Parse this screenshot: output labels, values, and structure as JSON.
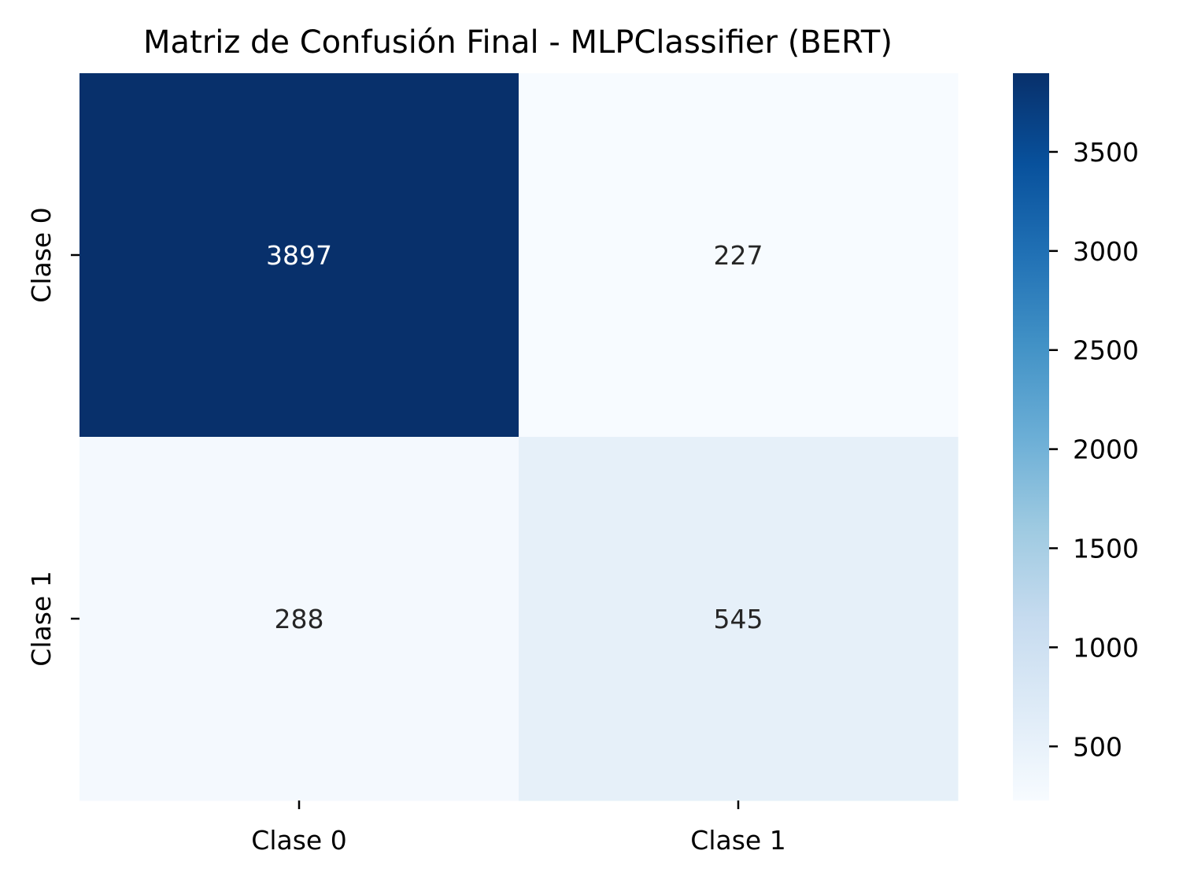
{
  "chart_data": {
    "type": "heatmap",
    "title": "Matriz de Confusión Final - MLPClassifier (BERT)",
    "xlabel": "",
    "ylabel": "",
    "x_categories": [
      "Clase 0",
      "Clase 1"
    ],
    "y_categories": [
      "Clase 0",
      "Clase 1"
    ],
    "matrix": [
      [
        3897,
        227
      ],
      [
        288,
        545
      ]
    ],
    "colormap": "Blues",
    "colorbar": {
      "min": 227,
      "max": 3897,
      "ticks": [
        500,
        1000,
        1500,
        2000,
        2500,
        3000,
        3500
      ]
    },
    "colors": {
      "light_text": "#ffffff",
      "dark_text": "#262626",
      "colormap_stops": [
        "#f7fbff",
        "#deebf7",
        "#c6dbef",
        "#9ecae1",
        "#6baed6",
        "#4292c6",
        "#2171b5",
        "#08519c",
        "#08306b"
      ]
    }
  }
}
